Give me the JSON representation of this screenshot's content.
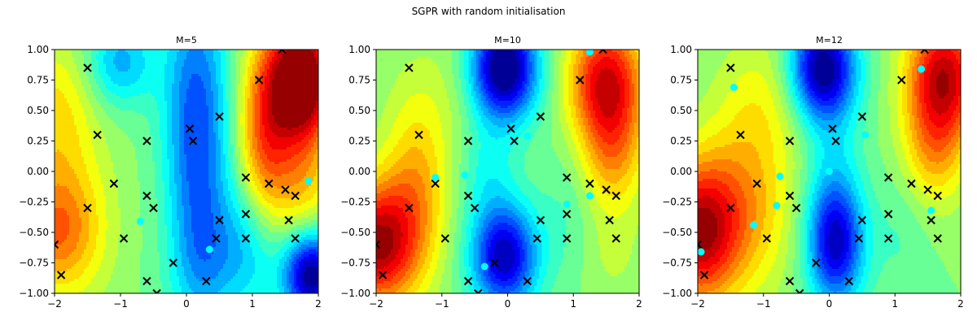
{
  "figure": {
    "suptitle": "SGPR with random initialisation"
  },
  "colors": {
    "colormap": "jet",
    "marker_x": "#000000",
    "marker_inducing": "#00ffff"
  },
  "chart_data": [
    {
      "type": "contour",
      "title": "M=5",
      "xlim": [
        -2,
        2
      ],
      "ylim": [
        -1,
        1
      ],
      "xticks": [
        "−2",
        "−1",
        "0",
        "1",
        "2"
      ],
      "yticks": [
        "−1.00",
        "−0.75",
        "−0.50",
        "−0.25",
        "0.00",
        "0.25",
        "0.50",
        "0.75",
        "1.00"
      ],
      "field": {
        "base": 0.5,
        "gain": 1.0,
        "blobs": [
          [
            -2.0,
            -0.5,
            0.45,
            0.35,
            0.25
          ],
          [
            -2.0,
            0.45,
            0.4,
            0.45,
            0.15
          ],
          [
            -1.5,
            -0.3,
            0.4,
            0.6,
            0.05
          ],
          [
            -1.0,
            0.9,
            0.35,
            0.25,
            -0.2
          ],
          [
            -0.2,
            -0.3,
            0.3,
            0.45,
            0.02
          ],
          [
            0.15,
            0.3,
            0.35,
            0.9,
            -0.32
          ],
          [
            0.3,
            -0.75,
            0.35,
            0.35,
            -0.1
          ],
          [
            1.75,
            0.75,
            0.35,
            0.35,
            0.6
          ],
          [
            1.2,
            0.2,
            0.3,
            0.6,
            0.3
          ],
          [
            1.0,
            -0.6,
            0.35,
            0.4,
            -0.2
          ],
          [
            1.9,
            -0.85,
            0.3,
            0.25,
            -0.5
          ],
          [
            1.8,
            -0.1,
            0.3,
            0.35,
            0.15
          ]
        ]
      },
      "data_points": [
        [
          -1.5,
          0.85
        ],
        [
          -1.35,
          0.3
        ],
        [
          -1.1,
          -0.1
        ],
        [
          -1.5,
          -0.3
        ],
        [
          -0.95,
          -0.55
        ],
        [
          -2.0,
          -0.6
        ],
        [
          -1.9,
          -0.85
        ],
        [
          -0.6,
          0.25
        ],
        [
          -0.6,
          -0.2
        ],
        [
          -0.5,
          -0.3
        ],
        [
          -0.6,
          -0.9
        ],
        [
          -0.45,
          -1.0
        ],
        [
          -0.2,
          -0.75
        ],
        [
          0.05,
          0.35
        ],
        [
          0.1,
          0.25
        ],
        [
          0.5,
          0.45
        ],
        [
          0.5,
          -0.4
        ],
        [
          0.45,
          -0.55
        ],
        [
          0.3,
          -0.9
        ],
        [
          0.9,
          -0.05
        ],
        [
          0.9,
          -0.35
        ],
        [
          0.9,
          -0.55
        ],
        [
          1.1,
          0.75
        ],
        [
          1.25,
          -0.1
        ],
        [
          1.45,
          1.0
        ],
        [
          1.5,
          -0.15
        ],
        [
          1.55,
          -0.4
        ],
        [
          1.65,
          -0.2
        ],
        [
          1.65,
          -0.55
        ]
      ],
      "inducing_points": [
        [
          -0.7,
          -0.41
        ],
        [
          0.35,
          -0.64
        ],
        [
          1.85,
          -0.08
        ]
      ]
    },
    {
      "type": "contour",
      "title": "M=10",
      "xlim": [
        -2,
        2
      ],
      "ylim": [
        -1,
        1
      ],
      "xticks": [
        "−2",
        "−1",
        "0",
        "1",
        "2"
      ],
      "yticks": [
        "−1.00",
        "−0.75",
        "−0.50",
        "−0.25",
        "0.00",
        "0.25",
        "0.50",
        "0.75",
        "1.00"
      ],
      "field": {
        "base": 0.5,
        "gain": 1.0,
        "blobs": [
          [
            -2.0,
            -0.6,
            0.4,
            0.35,
            0.45
          ],
          [
            -1.4,
            -0.2,
            0.35,
            0.5,
            0.2
          ],
          [
            -1.1,
            0.6,
            0.5,
            0.4,
            0.05
          ],
          [
            -0.05,
            0.85,
            0.35,
            0.3,
            -0.55
          ],
          [
            -0.05,
            -0.7,
            0.35,
            0.3,
            -0.45
          ],
          [
            -0.3,
            0.0,
            0.3,
            0.3,
            -0.1
          ],
          [
            1.5,
            0.75,
            0.4,
            0.35,
            0.4
          ],
          [
            1.6,
            0.15,
            0.35,
            0.35,
            0.2
          ],
          [
            1.6,
            -0.7,
            0.35,
            0.3,
            0.05
          ],
          [
            0.9,
            -0.35,
            0.3,
            0.4,
            -0.05
          ]
        ]
      },
      "data_points": [
        [
          -1.5,
          0.85
        ],
        [
          -1.35,
          0.3
        ],
        [
          -1.1,
          -0.1
        ],
        [
          -1.5,
          -0.3
        ],
        [
          -0.95,
          -0.55
        ],
        [
          -2.0,
          -0.6
        ],
        [
          -1.9,
          -0.85
        ],
        [
          -0.6,
          0.25
        ],
        [
          -0.6,
          -0.2
        ],
        [
          -0.5,
          -0.3
        ],
        [
          -0.6,
          -0.9
        ],
        [
          -0.45,
          -1.0
        ],
        [
          -0.2,
          -0.75
        ],
        [
          0.05,
          0.35
        ],
        [
          0.1,
          0.25
        ],
        [
          0.5,
          0.45
        ],
        [
          0.5,
          -0.4
        ],
        [
          0.45,
          -0.55
        ],
        [
          0.3,
          -0.9
        ],
        [
          0.9,
          -0.05
        ],
        [
          0.9,
          -0.35
        ],
        [
          0.9,
          -0.55
        ],
        [
          1.1,
          0.75
        ],
        [
          1.25,
          -0.1
        ],
        [
          1.45,
          1.0
        ],
        [
          1.5,
          -0.15
        ],
        [
          1.55,
          -0.4
        ],
        [
          1.65,
          -0.2
        ],
        [
          1.65,
          -0.55
        ]
      ],
      "inducing_points": [
        [
          1.25,
          0.98
        ],
        [
          0.3,
          0.29
        ],
        [
          -1.1,
          -0.05
        ],
        [
          -0.65,
          -0.03
        ],
        [
          0.9,
          -0.27
        ],
        [
          1.25,
          -0.2
        ],
        [
          0.55,
          -0.51
        ],
        [
          -0.35,
          -0.78
        ]
      ]
    },
    {
      "type": "contour",
      "title": "M=12",
      "xlim": [
        -2,
        2
      ],
      "ylim": [
        -1,
        1
      ],
      "xticks": [
        "−2",
        "−1",
        "0",
        "1",
        "2"
      ],
      "yticks": [
        "−1.00",
        "−0.75",
        "−0.50",
        "−0.25",
        "0.00",
        "0.25",
        "0.50",
        "0.75",
        "1.00"
      ],
      "field": {
        "base": 0.5,
        "gain": 1.0,
        "blobs": [
          [
            -2.0,
            -0.5,
            0.4,
            0.4,
            0.42
          ],
          [
            -1.3,
            -0.3,
            0.5,
            0.5,
            0.2
          ],
          [
            -1.0,
            0.6,
            0.5,
            0.4,
            0.1
          ],
          [
            -0.1,
            0.85,
            0.35,
            0.3,
            -0.5
          ],
          [
            0.1,
            -0.6,
            0.3,
            0.35,
            -0.4
          ],
          [
            0.05,
            0.0,
            0.3,
            0.5,
            -0.1
          ],
          [
            1.75,
            0.8,
            0.4,
            0.35,
            0.42
          ],
          [
            1.6,
            0.2,
            0.35,
            0.35,
            0.2
          ],
          [
            1.1,
            -0.5,
            0.3,
            0.4,
            -0.05
          ],
          [
            1.8,
            -0.7,
            0.3,
            0.3,
            0.0
          ]
        ]
      },
      "data_points": [
        [
          -1.5,
          0.85
        ],
        [
          -1.35,
          0.3
        ],
        [
          -1.1,
          -0.1
        ],
        [
          -1.5,
          -0.3
        ],
        [
          -0.95,
          -0.55
        ],
        [
          -2.0,
          -0.6
        ],
        [
          -1.9,
          -0.85
        ],
        [
          -0.6,
          0.25
        ],
        [
          -0.6,
          -0.2
        ],
        [
          -0.5,
          -0.3
        ],
        [
          -0.6,
          -0.9
        ],
        [
          -0.45,
          -1.0
        ],
        [
          -0.2,
          -0.75
        ],
        [
          0.05,
          0.35
        ],
        [
          0.1,
          0.25
        ],
        [
          0.5,
          0.45
        ],
        [
          0.5,
          -0.4
        ],
        [
          0.45,
          -0.55
        ],
        [
          0.3,
          -0.9
        ],
        [
          0.9,
          -0.05
        ],
        [
          0.9,
          -0.35
        ],
        [
          0.9,
          -0.55
        ],
        [
          1.1,
          0.75
        ],
        [
          1.25,
          -0.1
        ],
        [
          1.45,
          1.0
        ],
        [
          1.5,
          -0.15
        ],
        [
          1.55,
          -0.4
        ],
        [
          1.65,
          -0.2
        ],
        [
          1.65,
          -0.55
        ]
      ],
      "inducing_points": [
        [
          1.4,
          0.84
        ],
        [
          -1.45,
          0.69
        ],
        [
          0.55,
          0.3
        ],
        [
          -0.75,
          -0.04
        ],
        [
          0.0,
          0.0
        ],
        [
          -0.8,
          -0.28
        ],
        [
          -1.15,
          -0.44
        ],
        [
          0.6,
          -0.41
        ],
        [
          1.55,
          -0.32
        ],
        [
          -1.95,
          -0.66
        ]
      ]
    }
  ]
}
